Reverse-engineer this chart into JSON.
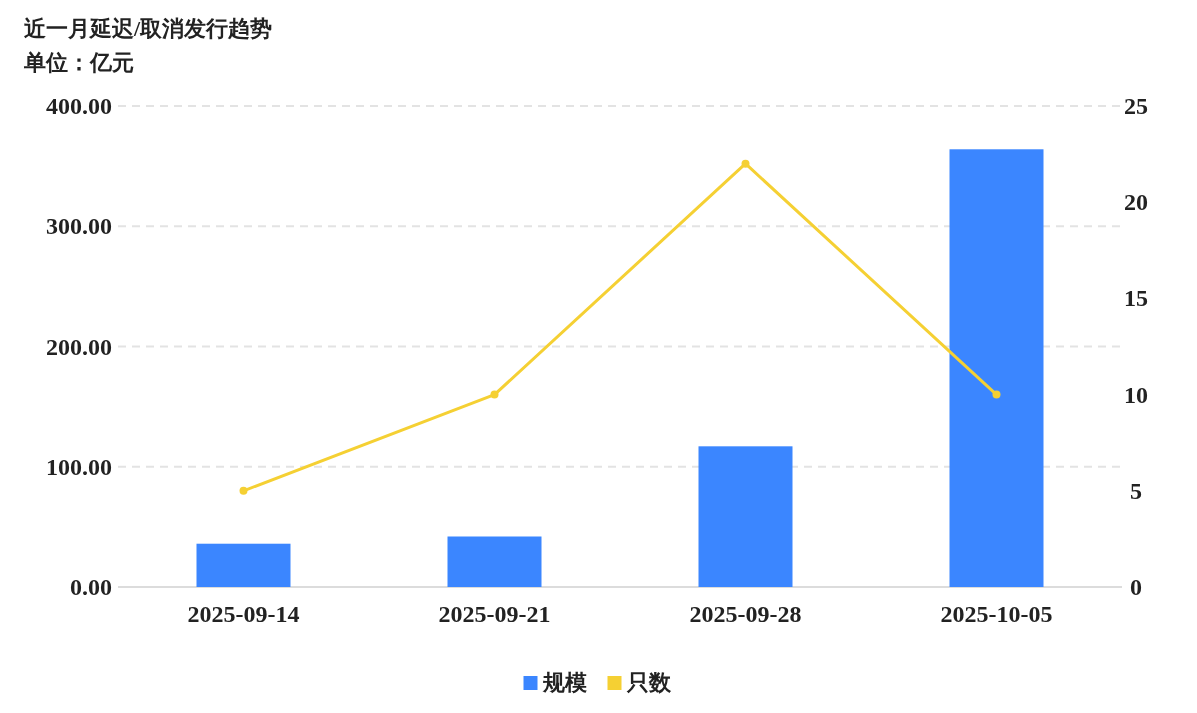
{
  "chart_data": {
    "type": "bar",
    "title": "近一月延迟/取消发行趋势",
    "subtitle": "单位：亿元",
    "categories": [
      "2025-09-14",
      "2025-09-21",
      "2025-09-28",
      "2025-10-05"
    ],
    "series": [
      {
        "name": "规模",
        "color": "#3b86ff",
        "values": [
          36,
          42,
          117,
          364
        ]
      },
      {
        "name": "只数",
        "type": "line",
        "axis": "y2",
        "color": "#f5d033",
        "values": [
          5,
          10,
          22,
          10
        ]
      }
    ],
    "ylim": [
      0,
      400
    ],
    "yticks": [
      {
        "value": 0,
        "label": "0.00"
      },
      {
        "value": 100,
        "label": "100.00"
      },
      {
        "value": 200,
        "label": "200.00"
      },
      {
        "value": 300,
        "label": "300.00"
      },
      {
        "value": 400,
        "label": "400.00"
      }
    ],
    "y2lim": [
      0,
      25
    ],
    "y2ticks": [
      0,
      5,
      10,
      15,
      20,
      25
    ],
    "grid": "y",
    "legend": "bottom",
    "marker": "circle",
    "line_style": "solid"
  }
}
